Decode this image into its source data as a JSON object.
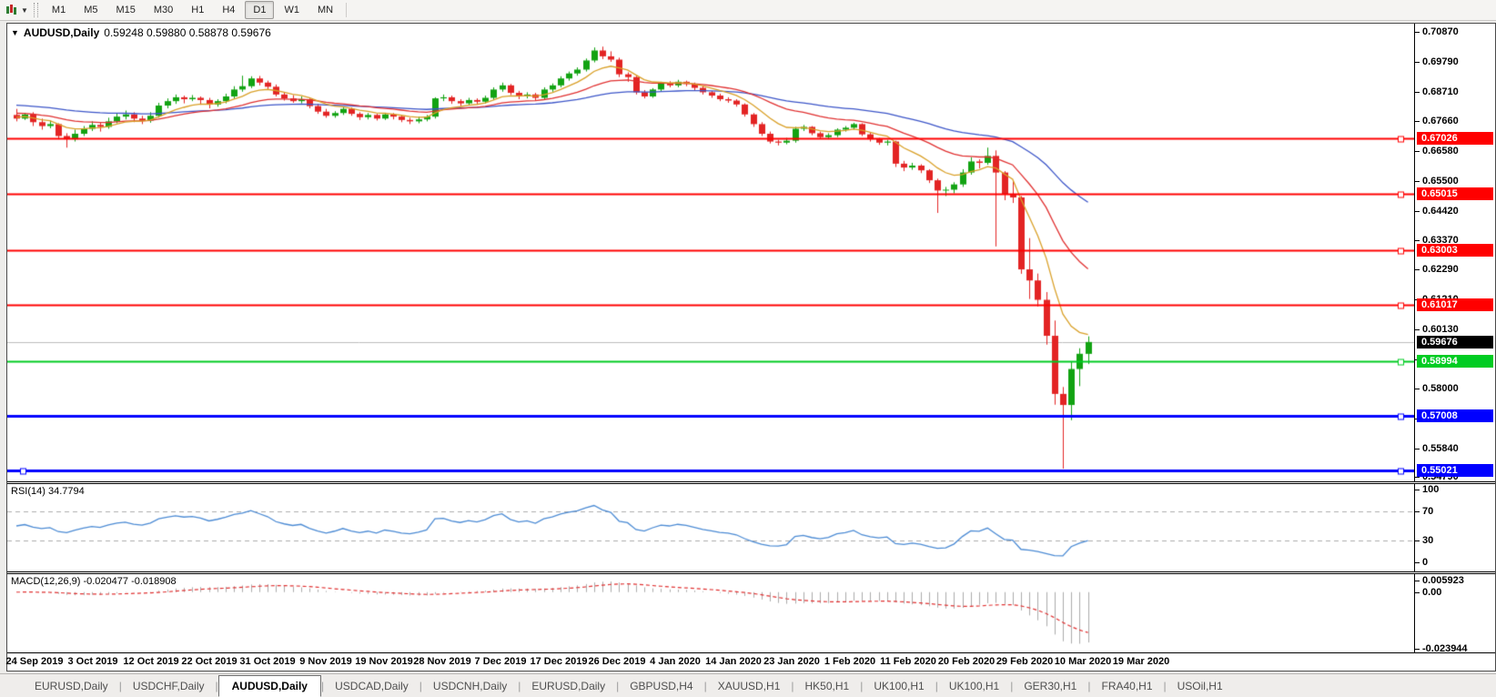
{
  "toolbar": {
    "timeframes": [
      "M1",
      "M5",
      "M15",
      "M30",
      "H1",
      "H4",
      "D1",
      "W1",
      "MN"
    ],
    "active_timeframe": "D1"
  },
  "chart_title": {
    "symbol_timeframe": "AUDUSD,Daily",
    "ohlc": "0.59248 0.59880 0.58878 0.59676"
  },
  "panels": {
    "rsi_label": "RSI(14) 34.7794",
    "macd_label": "MACD(12,26,9) -0.020477 -0.018908"
  },
  "chart_data": {
    "type": "candlestick",
    "title": "AUDUSD,Daily",
    "ohlc_display": {
      "open": "0.59248",
      "high": "0.59880",
      "low": "0.58878",
      "close": "0.59676"
    },
    "current_price": 0.59676,
    "current_price_label": "0.59676",
    "price_axis": {
      "min": 0.5464,
      "max": 0.7118,
      "labels": [
        "0.70870",
        "0.69790",
        "0.68710",
        "0.67660",
        "0.66580",
        "0.65500",
        "0.64420",
        "0.63370",
        "0.62290",
        "0.61210",
        "0.60130",
        "0.59050",
        "0.58000",
        "0.56920",
        "0.55840",
        "0.54790"
      ]
    },
    "x_labels": [
      "24 Sep 2019",
      "3 Oct 2019",
      "12 Oct 2019",
      "22 Oct 2019",
      "31 Oct 2019",
      "9 Nov 2019",
      "19 Nov 2019",
      "28 Nov 2019",
      "7 Dec 2019",
      "17 Dec 2019",
      "26 Dec 2019",
      "4 Jan 2020",
      "14 Jan 2020",
      "23 Jan 2020",
      "1 Feb 2020",
      "11 Feb 2020",
      "20 Feb 2020",
      "29 Feb 2020",
      "10 Mar 2020",
      "19 Mar 2020"
    ],
    "colors": {
      "up": "#12A312",
      "down": "#E32424",
      "ma_fast": "#D9A028",
      "ma_mid": "#E03030",
      "ma_slow": "#3C55C8",
      "current_line": "#BDBDBD",
      "red_level": "#FF0000",
      "green_level": "#00CC22",
      "blue_level": "#0000FF",
      "rsi_line": "#4C8BD4",
      "macd_hist": "#ABABAB",
      "macd_signal": "#E03030"
    },
    "moving_averages": [
      {
        "type": "ema",
        "period": 50,
        "color_key": "ma_slow",
        "seed": 0.6825
      },
      {
        "type": "ema",
        "period": 21,
        "color_key": "ma_mid",
        "seed": 0.6796
      },
      {
        "type": "ema",
        "period": 8,
        "color_key": "ma_fast",
        "seed": 0.6781
      }
    ],
    "hlines": [
      {
        "price": 0.67026,
        "label": "0.67026",
        "color": "#FF0000",
        "width": 2
      },
      {
        "price": 0.65015,
        "label": "0.65015",
        "color": "#FF0000",
        "width": 2
      },
      {
        "price": 0.63003,
        "label": "0.63003",
        "color": "#FF0000",
        "width": 2
      },
      {
        "price": 0.61017,
        "label": "0.61017",
        "color": "#FF0000",
        "width": 2
      },
      {
        "price": 0.58994,
        "label": "0.58994",
        "color": "#00CC22",
        "width": 2
      },
      {
        "price": 0.57008,
        "label": "0.57008",
        "color": "#0000FF",
        "width": 3,
        "left_handle": false
      },
      {
        "price": 0.55021,
        "label": "0.55021",
        "color": "#0000FF",
        "width": 3,
        "left_handle": true
      }
    ],
    "indicators": {
      "rsi": {
        "name": "RSI",
        "period": 14,
        "value_display": "34.7794",
        "levels": [
          70,
          30
        ],
        "axis_labels": [
          "100",
          "70",
          "30",
          "0"
        ],
        "range": [
          0,
          100
        ]
      },
      "macd": {
        "name": "MACD",
        "fast": 12,
        "slow": 26,
        "signal": 9,
        "values_display": "-0.020477 -0.018908",
        "axis_labels": [
          "0.005923",
          "0.00",
          "-0.023944"
        ],
        "range": [
          -0.0246,
          0.0068
        ]
      }
    },
    "candles": [
      [
        0.6788,
        0.681,
        0.6765,
        0.6775
      ],
      [
        0.6775,
        0.6796,
        0.677,
        0.679
      ],
      [
        0.679,
        0.6798,
        0.6748,
        0.6762
      ],
      [
        0.6762,
        0.6775,
        0.6735,
        0.6748
      ],
      [
        0.6748,
        0.6768,
        0.674,
        0.6755
      ],
      [
        0.6755,
        0.6758,
        0.67,
        0.6712
      ],
      [
        0.6712,
        0.6722,
        0.667,
        0.67
      ],
      [
        0.67,
        0.6735,
        0.6692,
        0.672
      ],
      [
        0.672,
        0.6748,
        0.6712,
        0.6738
      ],
      [
        0.6738,
        0.6765,
        0.673,
        0.6752
      ],
      [
        0.6752,
        0.6762,
        0.6728,
        0.6745
      ],
      [
        0.6745,
        0.6778,
        0.6738,
        0.6765
      ],
      [
        0.6765,
        0.6795,
        0.6758,
        0.6782
      ],
      [
        0.6782,
        0.6804,
        0.6772,
        0.679
      ],
      [
        0.679,
        0.6798,
        0.6762,
        0.6775
      ],
      [
        0.6775,
        0.6785,
        0.6755,
        0.6768
      ],
      [
        0.6768,
        0.6798,
        0.676,
        0.6785
      ],
      [
        0.6785,
        0.6832,
        0.6778,
        0.6822
      ],
      [
        0.6822,
        0.6848,
        0.6812,
        0.6838
      ],
      [
        0.6838,
        0.6862,
        0.6828,
        0.6852
      ],
      [
        0.6852,
        0.6858,
        0.683,
        0.6845
      ],
      [
        0.6845,
        0.686,
        0.6838,
        0.685
      ],
      [
        0.685,
        0.6855,
        0.6825,
        0.6842
      ],
      [
        0.6842,
        0.685,
        0.6812,
        0.6826
      ],
      [
        0.6826,
        0.6845,
        0.6818,
        0.6838
      ],
      [
        0.6838,
        0.6865,
        0.683,
        0.6855
      ],
      [
        0.6855,
        0.6892,
        0.6848,
        0.688
      ],
      [
        0.688,
        0.693,
        0.6872,
        0.6892
      ],
      [
        0.6892,
        0.6928,
        0.6885,
        0.692
      ],
      [
        0.692,
        0.6929,
        0.6895,
        0.6905
      ],
      [
        0.6905,
        0.6912,
        0.6878,
        0.689
      ],
      [
        0.689,
        0.6898,
        0.6855,
        0.6862
      ],
      [
        0.6862,
        0.687,
        0.684,
        0.6848
      ],
      [
        0.6848,
        0.686,
        0.6832,
        0.6838
      ],
      [
        0.6838,
        0.6855,
        0.683,
        0.6845
      ],
      [
        0.6845,
        0.6848,
        0.6812,
        0.682
      ],
      [
        0.682,
        0.6828,
        0.6792,
        0.68
      ],
      [
        0.68,
        0.681,
        0.6778,
        0.6785
      ],
      [
        0.6785,
        0.6802,
        0.6778,
        0.6795
      ],
      [
        0.6795,
        0.6818,
        0.6788,
        0.681
      ],
      [
        0.681,
        0.6815,
        0.6785,
        0.6792
      ],
      [
        0.6792,
        0.6798,
        0.677,
        0.678
      ],
      [
        0.678,
        0.6795,
        0.6772,
        0.6788
      ],
      [
        0.6788,
        0.6792,
        0.6768,
        0.6775
      ],
      [
        0.6775,
        0.6796,
        0.677,
        0.679
      ],
      [
        0.679,
        0.6795,
        0.6772,
        0.6782
      ],
      [
        0.6782,
        0.6788,
        0.6762,
        0.677
      ],
      [
        0.677,
        0.6778,
        0.6755,
        0.6765
      ],
      [
        0.6765,
        0.6782,
        0.6758,
        0.6772
      ],
      [
        0.6772,
        0.6788,
        0.6765,
        0.6782
      ],
      [
        0.6782,
        0.6852,
        0.6775,
        0.6848
      ],
      [
        0.6848,
        0.6862,
        0.6838,
        0.6852
      ],
      [
        0.6852,
        0.6858,
        0.6828,
        0.6838
      ],
      [
        0.6838,
        0.6845,
        0.682,
        0.683
      ],
      [
        0.683,
        0.685,
        0.6822,
        0.6842
      ],
      [
        0.6842,
        0.6848,
        0.6825,
        0.6836
      ],
      [
        0.6836,
        0.6858,
        0.683,
        0.685
      ],
      [
        0.685,
        0.6888,
        0.6842,
        0.688
      ],
      [
        0.688,
        0.6905,
        0.6872,
        0.6895
      ],
      [
        0.6895,
        0.69,
        0.686,
        0.6868
      ],
      [
        0.6868,
        0.6875,
        0.6845,
        0.6855
      ],
      [
        0.6855,
        0.687,
        0.6848,
        0.6862
      ],
      [
        0.6862,
        0.6868,
        0.684,
        0.685
      ],
      [
        0.685,
        0.6888,
        0.6845,
        0.688
      ],
      [
        0.688,
        0.6902,
        0.6872,
        0.6895
      ],
      [
        0.6895,
        0.6928,
        0.6888,
        0.692
      ],
      [
        0.692,
        0.6945,
        0.6912,
        0.6938
      ],
      [
        0.6938,
        0.696,
        0.693,
        0.6952
      ],
      [
        0.6952,
        0.6992,
        0.6945,
        0.6985
      ],
      [
        0.6985,
        0.7032,
        0.6978,
        0.7021
      ],
      [
        0.7021,
        0.7035,
        0.699,
        0.7
      ],
      [
        0.7,
        0.7018,
        0.698,
        0.6988
      ],
      [
        0.6988,
        0.6995,
        0.6925,
        0.6935
      ],
      [
        0.6935,
        0.6942,
        0.6908,
        0.6925
      ],
      [
        0.6925,
        0.693,
        0.6862,
        0.687
      ],
      [
        0.687,
        0.6878,
        0.6848,
        0.6855
      ],
      [
        0.6855,
        0.6885,
        0.685,
        0.688
      ],
      [
        0.688,
        0.6908,
        0.6872,
        0.6902
      ],
      [
        0.6902,
        0.691,
        0.6888,
        0.6895
      ],
      [
        0.6895,
        0.6915,
        0.6888,
        0.6908
      ],
      [
        0.6908,
        0.6912,
        0.6892,
        0.69
      ],
      [
        0.69,
        0.6905,
        0.6878,
        0.6886
      ],
      [
        0.6886,
        0.6892,
        0.6862,
        0.687
      ],
      [
        0.687,
        0.6875,
        0.685,
        0.6858
      ],
      [
        0.6858,
        0.6865,
        0.6838,
        0.6845
      ],
      [
        0.6845,
        0.6852,
        0.6832,
        0.684
      ],
      [
        0.684,
        0.6845,
        0.6818,
        0.6826
      ],
      [
        0.6826,
        0.683,
        0.6782,
        0.679
      ],
      [
        0.679,
        0.6795,
        0.6745,
        0.6755
      ],
      [
        0.6755,
        0.6762,
        0.6712,
        0.672
      ],
      [
        0.672,
        0.6728,
        0.6685,
        0.6692
      ],
      [
        0.6692,
        0.6698,
        0.6678,
        0.6688
      ],
      [
        0.6688,
        0.6705,
        0.6682,
        0.6695
      ],
      [
        0.6695,
        0.6745,
        0.6688,
        0.6738
      ],
      [
        0.6738,
        0.6752,
        0.673,
        0.6745
      ],
      [
        0.6745,
        0.6748,
        0.6715,
        0.6722
      ],
      [
        0.6722,
        0.6728,
        0.6702,
        0.6708
      ],
      [
        0.6708,
        0.6722,
        0.67,
        0.6715
      ],
      [
        0.6715,
        0.674,
        0.6708,
        0.6735
      ],
      [
        0.6735,
        0.6748,
        0.6728,
        0.6742
      ],
      [
        0.6742,
        0.676,
        0.6735,
        0.6755
      ],
      [
        0.6755,
        0.6758,
        0.6712,
        0.6718
      ],
      [
        0.6718,
        0.6725,
        0.6692,
        0.67
      ],
      [
        0.67,
        0.6705,
        0.668,
        0.6688
      ],
      [
        0.6688,
        0.6698,
        0.6678,
        0.6692
      ],
      [
        0.6692,
        0.6695,
        0.66,
        0.6612
      ],
      [
        0.6612,
        0.6622,
        0.6585,
        0.6598
      ],
      [
        0.6598,
        0.6615,
        0.659,
        0.6605
      ],
      [
        0.6605,
        0.661,
        0.6578,
        0.6588
      ],
      [
        0.6588,
        0.6592,
        0.6542,
        0.6552
      ],
      [
        0.6552,
        0.6558,
        0.6434,
        0.6515
      ],
      [
        0.6515,
        0.6528,
        0.6495,
        0.6518
      ],
      [
        0.6518,
        0.6545,
        0.6505,
        0.6537
      ],
      [
        0.6537,
        0.6592,
        0.6528,
        0.658
      ],
      [
        0.658,
        0.6635,
        0.6572,
        0.662
      ],
      [
        0.662,
        0.6628,
        0.6595,
        0.6615
      ],
      [
        0.6615,
        0.667,
        0.6608,
        0.664
      ],
      [
        0.664,
        0.666,
        0.6313,
        0.658
      ],
      [
        0.658,
        0.6585,
        0.648,
        0.65
      ],
      [
        0.65,
        0.655,
        0.647,
        0.649
      ],
      [
        0.649,
        0.6495,
        0.6214,
        0.623
      ],
      [
        0.623,
        0.6343,
        0.6123,
        0.619
      ],
      [
        0.619,
        0.6215,
        0.6096,
        0.612
      ],
      [
        0.612,
        0.6148,
        0.5958,
        0.599
      ],
      [
        0.599,
        0.6045,
        0.5741,
        0.578
      ],
      [
        0.578,
        0.5805,
        0.551,
        0.574
      ],
      [
        0.574,
        0.5895,
        0.5685,
        0.587
      ],
      [
        0.587,
        0.5945,
        0.5808,
        0.5925
      ],
      [
        0.59248,
        0.5988,
        0.58878,
        0.59676
      ]
    ]
  },
  "tabs": {
    "items": [
      "EURUSD,Daily",
      "USDCHF,Daily",
      "AUDUSD,Daily",
      "USDCAD,Daily",
      "USDCNH,Daily",
      "EURUSD,Daily",
      "GBPUSD,H4",
      "XAUUSD,H1",
      "HK50,H1",
      "UK100,H1",
      "UK100,H1",
      "GER30,H1",
      "FRA40,H1",
      "USOil,H1"
    ],
    "active_index": 2
  }
}
